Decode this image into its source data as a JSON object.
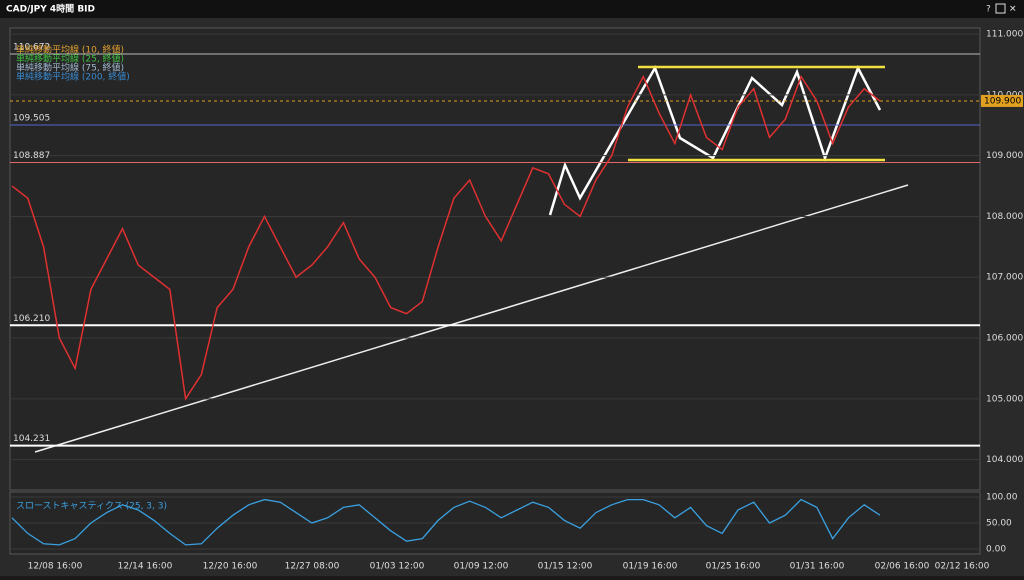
{
  "window": {
    "title": "CAD/JPY 4時間 BID",
    "buttons": [
      "?"
    ]
  },
  "price_chart": {
    "type": "line",
    "color": "#e03030",
    "values": [
      108.5,
      108.3,
      107.5,
      106.0,
      105.5,
      106.8,
      107.3,
      107.8,
      107.2,
      107.0,
      106.8,
      105.0,
      105.4,
      106.5,
      106.8,
      107.5,
      108.0,
      107.5,
      107.0,
      107.2,
      107.5,
      107.9,
      107.3,
      107.0,
      106.5,
      106.4,
      106.6,
      107.5,
      108.3,
      108.6,
      108.0,
      107.6,
      108.2,
      108.8,
      108.7,
      108.2,
      108.0,
      108.6,
      109.0,
      109.8,
      110.3,
      109.7,
      109.2,
      110.0,
      109.3,
      109.1,
      109.8,
      110.1,
      109.3,
      109.6,
      110.3,
      109.9,
      109.2,
      109.8,
      110.1,
      109.9
    ],
    "ylim": [
      103.5,
      111.1
    ],
    "yticks": [
      {
        "value": 111,
        "label": "111.000"
      },
      {
        "value": 110,
        "label": "110.000"
      },
      {
        "value": 109,
        "label": "109.000"
      },
      {
        "value": 108,
        "label": "108.000"
      },
      {
        "value": 107,
        "label": "107.000"
      },
      {
        "value": 106,
        "label": "106.000"
      },
      {
        "value": 105,
        "label": "105.000"
      },
      {
        "value": 104,
        "label": "104.000"
      }
    ],
    "levels": [
      {
        "value": 110.672,
        "label": "110.672",
        "color": "#bbbbbb"
      },
      {
        "value": 109.505,
        "label": "109.505",
        "color": "#5566cc"
      },
      {
        "value": 108.887,
        "label": "108.887",
        "color": "#e06a6a"
      },
      {
        "value": 106.21,
        "label": "106.210",
        "color": "#ffffff"
      },
      {
        "value": 104.231,
        "label": "104.231",
        "color": "#ffffff"
      }
    ],
    "current": {
      "value": 109.9,
      "label": "109.900"
    },
    "legend": [
      {
        "name": "単純移動平均線 (10, 終値)",
        "color": "#e0a030"
      },
      {
        "name": "単純移動平均線 (25, 終値)",
        "color": "#40c040"
      },
      {
        "name": "単純移動平均線 (75, 終値)",
        "color": "#a0b8d0"
      },
      {
        "name": "単純移動平均線 (200, 終値)",
        "color": "#3a8ad0"
      }
    ],
    "x_labels": [
      "12/08 16:00",
      "12/14 16:00",
      "12/20 16:00",
      "12/27 08:00",
      "01/03 12:00",
      "01/09 12:00",
      "01/15 12:00",
      "01/19 16:00",
      "01/25 16:00",
      "01/31 16:00",
      "02/06 16:00",
      "02/12 16:00"
    ]
  },
  "oscillator": {
    "type": "line",
    "title": "スローストキャスティクス (25, 3, 3)",
    "color": "#3aa0e0",
    "values": [
      60,
      30,
      10,
      8,
      20,
      50,
      70,
      85,
      75,
      55,
      30,
      8,
      10,
      40,
      65,
      85,
      95,
      90,
      70,
      50,
      60,
      80,
      85,
      60,
      35,
      15,
      20,
      55,
      80,
      92,
      80,
      60,
      75,
      90,
      80,
      55,
      40,
      70,
      85,
      95,
      95,
      85,
      60,
      80,
      45,
      30,
      75,
      90,
      50,
      65,
      95,
      80,
      20,
      60,
      85,
      65
    ],
    "ylim": [
      0,
      100
    ],
    "yticks": [
      {
        "value": 100,
        "label": "100.00"
      },
      {
        "value": 50,
        "label": "50.00"
      },
      {
        "value": 0,
        "label": "0.00"
      }
    ]
  }
}
